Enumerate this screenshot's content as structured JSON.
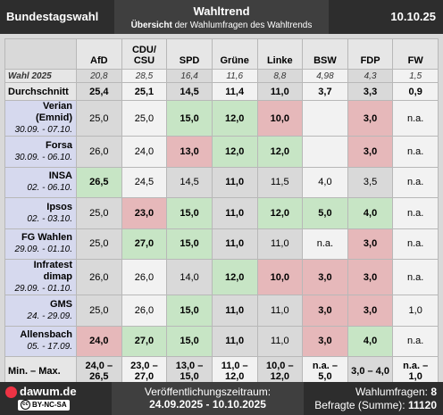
{
  "header": {
    "left": "Bundestagswahl",
    "title": "Wahltrend",
    "subtitle_bold": "Übersicht",
    "subtitle": "der Wahlumfragen des Wahltrends",
    "date": "10.10.25"
  },
  "table": {
    "columns": [
      "AfD",
      "CDU/ CSU",
      "SPD",
      "Grüne",
      "Linke",
      "BSW",
      "FDP",
      "FW"
    ],
    "election": {
      "label": "Wahl 2025",
      "values": [
        "20,8",
        "28,5",
        "16,4",
        "11,6",
        "8,8",
        "4,98",
        "4,3",
        "1,5"
      ]
    },
    "average": {
      "label": "Durchschnitt",
      "values": [
        "25,4",
        "25,1",
        "14,5",
        "11,4",
        "11,0",
        "3,7",
        "3,3",
        "0,9"
      ]
    },
    "rows": [
      {
        "name": "Verian (Emnid)",
        "dates": "30.09. - 07.10.",
        "values": [
          "25,0",
          "25,0",
          "15,0",
          "12,0",
          "10,0",
          null,
          "3,0",
          "n.a."
        ],
        "highlight": [
          null,
          null,
          "green",
          "green",
          "red",
          null,
          "red",
          null
        ]
      },
      {
        "name": "Forsa",
        "dates": "30.09. - 06.10.",
        "values": [
          "26,0",
          "24,0",
          "13,0",
          "12,0",
          "12,0",
          null,
          "3,0",
          "n.a."
        ],
        "highlight": [
          null,
          null,
          "red",
          "green",
          "green",
          null,
          "red",
          null
        ]
      },
      {
        "name": "INSA",
        "dates": "02. - 06.10.",
        "values": [
          "26,5",
          "24,5",
          "14,5",
          "11,0",
          "11,5",
          "4,0",
          "3,5",
          "n.a."
        ],
        "highlight": [
          "green",
          null,
          null,
          "bold",
          null,
          null,
          null,
          null
        ]
      },
      {
        "name": "Ipsos",
        "dates": "02. - 03.10.",
        "values": [
          "25,0",
          "23,0",
          "15,0",
          "11,0",
          "12,0",
          "5,0",
          "4,0",
          "n.a."
        ],
        "highlight": [
          null,
          "red",
          "green",
          "bold",
          "green",
          "green",
          "green",
          null
        ]
      },
      {
        "name": "FG Wahlen",
        "dates": "29.09. - 01.10.",
        "values": [
          "25,0",
          "27,0",
          "15,0",
          "11,0",
          "11,0",
          "n.a.",
          "3,0",
          "n.a."
        ],
        "highlight": [
          null,
          "green",
          "green",
          "bold",
          null,
          null,
          "red",
          null
        ]
      },
      {
        "name": "Infratest dimap",
        "dates": "29.09. - 01.10.",
        "values": [
          "26,0",
          "26,0",
          "14,0",
          "12,0",
          "10,0",
          "3,0",
          "3,0",
          "n.a."
        ],
        "highlight": [
          null,
          null,
          null,
          "green",
          "red",
          "red",
          "red",
          null
        ]
      },
      {
        "name": "GMS",
        "dates": "24. - 29.09.",
        "values": [
          "25,0",
          "26,0",
          "15,0",
          "11,0",
          "11,0",
          "3,0",
          "3,0",
          "1,0"
        ],
        "highlight": [
          null,
          null,
          "green",
          "bold",
          null,
          "red",
          "red",
          null
        ]
      },
      {
        "name": "Allensbach",
        "dates": "05. - 17.09.",
        "values": [
          "24,0",
          "27,0",
          "15,0",
          "11,0",
          "11,0",
          "3,0",
          "4,0",
          "n.a."
        ],
        "highlight": [
          "red",
          "green",
          "green",
          "bold",
          null,
          "red",
          "green",
          null
        ]
      }
    ],
    "range": {
      "label": "Min. – Max.",
      "values": [
        "24,0 – 26,5",
        "23,0 – 27,0",
        "13,0 – 15,0",
        "11,0 – 12,0",
        "10,0 – 12,0",
        "n.a. – 5,0",
        "3,0 – 4,0",
        "n.a. – 1,0"
      ]
    }
  },
  "footer": {
    "site": "dawum.de",
    "license_icon": "cc",
    "license": "BY-NC-SA",
    "period_label": "Veröffentlichungszeitraum:",
    "period": "24.09.2025 - 10.10.2025",
    "polls_label": "Wahlumfragen:",
    "polls": "8",
    "respondents_label": "Befragte (Summe):",
    "respondents": "11120"
  }
}
